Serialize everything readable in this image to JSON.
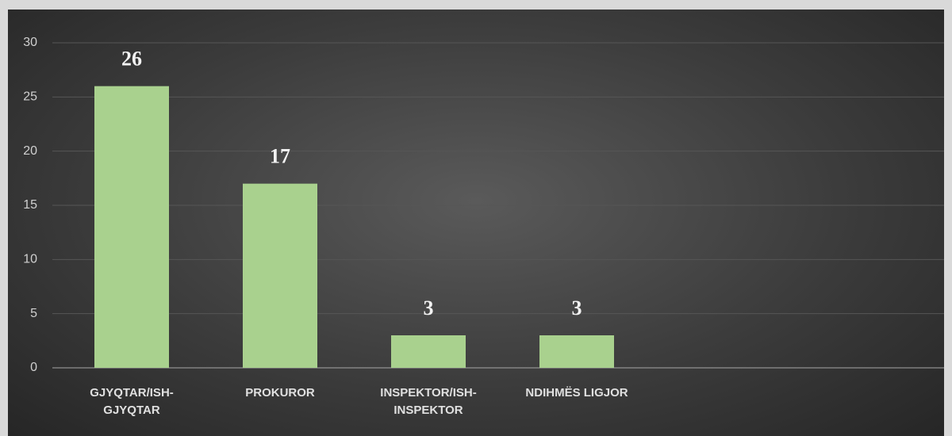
{
  "chart_data": {
    "type": "bar",
    "categories": [
      "GJYQTAR/ISH-GJYQTAR",
      "PROKUROR",
      "INSPEKTOR/ISH-INSPEKTOR",
      "NDIHMËS LIGJOR"
    ],
    "values": [
      26,
      17,
      3,
      3
    ],
    "color": "#a9d18e",
    "ylim": [
      0,
      30
    ],
    "yticks": [
      0,
      5,
      10,
      15,
      20,
      25,
      30
    ],
    "grid": true
  }
}
